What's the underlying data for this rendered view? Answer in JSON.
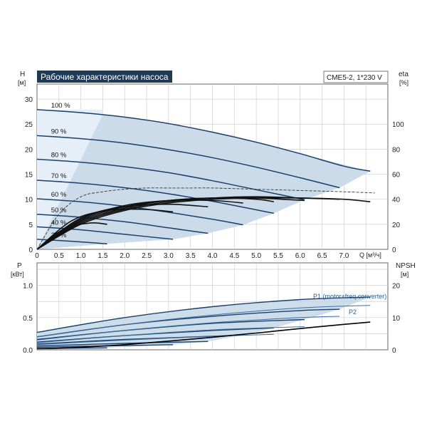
{
  "chart_data": [
    {
      "type": "line",
      "title": "Рабочие характеристики насоса",
      "subtitle": "CME5-2, 1*230 V",
      "ylabel": "H",
      "yunit": "[м]",
      "y2label": "eta",
      "y2unit": "[%]",
      "xlabel": "Q [м³/ч]",
      "xlim": [
        0,
        8.0
      ],
      "ylim": [
        0,
        33
      ],
      "y2lim": [
        0,
        132
      ],
      "xticks": [
        "0",
        "0.5",
        "1.0",
        "1.5",
        "2.0",
        "2.5",
        "3.0",
        "3.5",
        "4.0",
        "4.5",
        "5.0",
        "5.5",
        "6.0",
        "6.5",
        "7.0"
      ],
      "yticks": [
        "0",
        "5",
        "10",
        "15",
        "20",
        "25",
        "30"
      ],
      "y2ticks": [
        "0",
        "20",
        "40",
        "60",
        "80",
        "100"
      ],
      "grid": true,
      "colors": {
        "curve": "#1a3f6a",
        "region_shade": "#c9d9e8",
        "region_light": "#e6eff7",
        "eta": "#111111",
        "title_bg": "#1d3b58"
      },
      "speed_curves": [
        {
          "label": "100 %",
          "x": [
            0,
            1.0,
            2.0,
            3.0,
            4.0,
            5.0,
            6.0,
            7.0,
            7.6
          ],
          "y": [
            27.9,
            27.3,
            26.4,
            25.1,
            23.4,
            21.4,
            19.1,
            16.6,
            15.6
          ]
        },
        {
          "label": "90 %",
          "x": [
            0,
            1.0,
            2.0,
            3.0,
            4.0,
            5.0,
            6.0,
            6.9
          ],
          "y": [
            22.7,
            22.1,
            21.2,
            19.9,
            18.3,
            16.4,
            14.3,
            12.3
          ]
        },
        {
          "label": "80 %",
          "x": [
            0,
            1.0,
            2.0,
            3.0,
            4.0,
            5.0,
            6.1
          ],
          "y": [
            18.0,
            17.4,
            16.5,
            15.3,
            13.7,
            11.9,
            9.9
          ]
        },
        {
          "label": "70 %",
          "x": [
            0,
            1.0,
            2.0,
            3.0,
            4.0,
            5.0,
            5.4
          ],
          "y": [
            13.8,
            13.2,
            12.3,
            11.1,
            9.6,
            7.9,
            7.2
          ]
        },
        {
          "label": "60 %",
          "x": [
            0,
            1.0,
            2.0,
            3.0,
            4.0,
            4.7
          ],
          "y": [
            10.1,
            9.5,
            8.6,
            7.4,
            6.0,
            4.9
          ]
        },
        {
          "label": "50 %",
          "x": [
            0,
            1.0,
            2.0,
            3.0,
            3.9
          ],
          "y": [
            7.0,
            6.4,
            5.5,
            4.3,
            3.2
          ]
        },
        {
          "label": "40 %",
          "x": [
            0,
            1.0,
            2.0,
            3.1
          ],
          "y": [
            4.5,
            3.9,
            3.0,
            2.0
          ]
        },
        {
          "label": "21 %",
          "x": [
            0,
            0.8,
            1.6
          ],
          "y": [
            2.0,
            1.6,
            1.1
          ]
        }
      ],
      "eta_curves": [
        {
          "x": [
            0,
            1.0,
            2.0,
            3.0,
            4.0,
            5.0,
            6.0,
            7.0,
            7.6
          ],
          "y": [
            0,
            20,
            31,
            37,
            40,
            41,
            41,
            40,
            38
          ]
        },
        {
          "x": [
            0,
            1.0,
            2.0,
            3.0,
            4.0,
            5.0,
            6.0,
            6.9
          ],
          "y": [
            0,
            21,
            32,
            38,
            41,
            42,
            41,
            40
          ]
        },
        {
          "x": [
            0,
            1.0,
            2.0,
            3.0,
            4.0,
            5.0,
            6.1
          ],
          "y": [
            0,
            22,
            33,
            39,
            41,
            41,
            39
          ]
        },
        {
          "x": [
            0,
            1.0,
            2.0,
            3.0,
            4.0,
            5.0,
            5.4
          ],
          "y": [
            0,
            23,
            34,
            39,
            41,
            40,
            38
          ]
        },
        {
          "x": [
            0,
            1.0,
            2.0,
            3.0,
            4.0,
            4.7
          ],
          "y": [
            0,
            24,
            35,
            39,
            39,
            37
          ]
        },
        {
          "x": [
            0,
            1.0,
            2.0,
            3.0,
            3.9
          ],
          "y": [
            0,
            25,
            34,
            36,
            34
          ]
        },
        {
          "x": [
            0,
            0.8,
            1.6,
            2.4,
            3.1
          ],
          "y": [
            0,
            23,
            31,
            32,
            30
          ]
        },
        {
          "x": [
            0,
            0.6,
            1.2,
            1.6
          ],
          "y": [
            0,
            16,
            21,
            20
          ]
        }
      ],
      "eta_upper": {
        "x": [
          0,
          0.5,
          1.0,
          1.5,
          2.0,
          2.5,
          3.0,
          3.5,
          4.0,
          5.0,
          6.0,
          7.0,
          7.7
        ],
        "y": [
          0,
          28,
          42,
          46,
          48,
          49,
          49,
          49,
          49,
          48,
          47,
          46,
          45
        ]
      },
      "shaded_region": {
        "x": [
          0,
          1.6,
          3.1,
          3.9,
          4.7,
          5.4,
          6.1,
          6.9,
          7.6,
          6.0,
          4.0,
          2.0,
          1.5
        ],
        "y": [
          0,
          1.1,
          2.0,
          3.2,
          4.9,
          7.2,
          9.9,
          12.3,
          15.6,
          19.1,
          23.4,
          26.4,
          26.9
        ]
      },
      "light_region": {
        "x": [
          0,
          1.5,
          1.5,
          0
        ],
        "y": [
          0,
          26.9,
          27.9,
          27.9
        ]
      }
    },
    {
      "type": "line",
      "ylabel": "P",
      "yunit": "[кВт]",
      "y2label": "NPSH",
      "y2unit": "[м]",
      "xlim": [
        0,
        8.0
      ],
      "ylim": [
        0,
        1.35
      ],
      "y2lim": [
        0,
        27
      ],
      "yticks": [
        "0.0",
        "0.5",
        "1.0"
      ],
      "y2ticks": [
        "0",
        "10",
        "20"
      ],
      "grid": true,
      "annotations": [
        "P1 (motor+freq.converter)",
        "P2"
      ],
      "p1_curves": [
        {
          "x": [
            0,
            2.0,
            4.0,
            6.0,
            7.6
          ],
          "y": [
            0.27,
            0.5,
            0.67,
            0.78,
            0.82
          ]
        },
        {
          "x": [
            0,
            2.0,
            4.0,
            6.0,
            6.9
          ],
          "y": [
            0.2,
            0.39,
            0.52,
            0.61,
            0.63
          ]
        },
        {
          "x": [
            0,
            2.0,
            4.0,
            6.1
          ],
          "y": [
            0.16,
            0.3,
            0.41,
            0.47
          ]
        },
        {
          "x": [
            0,
            2.0,
            4.0,
            5.4
          ],
          "y": [
            0.12,
            0.22,
            0.3,
            0.34
          ]
        },
        {
          "x": [
            0,
            2.0,
            4.0,
            4.7
          ],
          "y": [
            0.09,
            0.16,
            0.21,
            0.23
          ]
        },
        {
          "x": [
            0,
            2.0,
            3.9
          ],
          "y": [
            0.06,
            0.1,
            0.13
          ]
        },
        {
          "x": [
            0,
            1.5,
            3.1
          ],
          "y": [
            0.04,
            0.06,
            0.08
          ]
        },
        {
          "x": [
            0,
            0.8,
            1.6
          ],
          "y": [
            0.02,
            0.025,
            0.03
          ]
        }
      ],
      "p2_curves": [
        {
          "x": [
            0,
            2.0,
            4.0,
            6.0,
            7.6
          ],
          "y": [
            0.2,
            0.39,
            0.54,
            0.65,
            0.69
          ]
        },
        {
          "x": [
            0,
            2.0,
            4.0,
            6.0,
            6.9
          ],
          "y": [
            0.15,
            0.3,
            0.42,
            0.5,
            0.52
          ]
        },
        {
          "x": [
            0,
            2.0,
            4.0,
            6.1
          ],
          "y": [
            0.11,
            0.22,
            0.31,
            0.36
          ]
        },
        {
          "x": [
            0,
            2.0,
            4.0,
            5.4
          ],
          "y": [
            0.08,
            0.15,
            0.21,
            0.24
          ]
        }
      ],
      "npsh_curve": {
        "x": [
          0,
          1.0,
          2.0,
          3.0,
          4.0,
          5.0,
          6.0,
          7.0,
          7.6
        ],
        "y": [
          0.3,
          0.8,
          1.6,
          2.7,
          3.9,
          5.2,
          6.6,
          7.9,
          8.6
        ]
      },
      "shaded_region": {
        "x": [
          0,
          1.6,
          3.1,
          3.9,
          4.7,
          5.4,
          6.1,
          6.9,
          7.6,
          6.0,
          4.0,
          2.0,
          0
        ],
        "y": [
          0,
          0.03,
          0.08,
          0.13,
          0.23,
          0.34,
          0.47,
          0.63,
          0.82,
          0.78,
          0.67,
          0.5,
          0.27
        ]
      }
    }
  ]
}
